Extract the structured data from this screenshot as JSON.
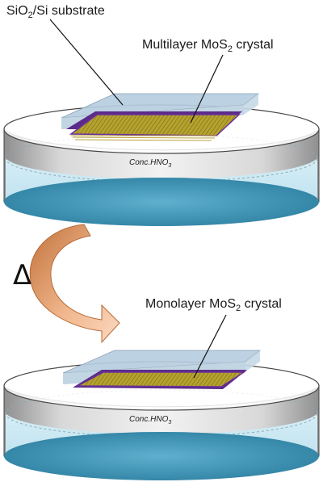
{
  "labels": {
    "substrate_label": "SiO",
    "substrate_sub": "2",
    "substrate_rest": "/Si substrate",
    "multilayer_prefix": "Multilayer MoS",
    "multilayer_sub": "2",
    "multilayer_suffix": " crystal",
    "monolayer_prefix": "Monolayer MoS",
    "monolayer_sub": "2",
    "monolayer_suffix": " crystal",
    "acid_top_prefix": "Conc.HNO",
    "acid_top_sub": "3",
    "acid_bottom_prefix": "Conc.HNO",
    "acid_bottom_sub": "3",
    "delta": "Δ"
  },
  "colors": {
    "liquid_top": "#c8e8f2",
    "liquid_bottom": "#3a8fb0",
    "wall": "#b8b8b8",
    "substrate": "#a9c4dc",
    "crystal_edge": "#6b2f9a",
    "crystal_fill": "#a69a2c",
    "arrow_light": "#f6c7a4",
    "arrow_dark": "#c67a42"
  }
}
